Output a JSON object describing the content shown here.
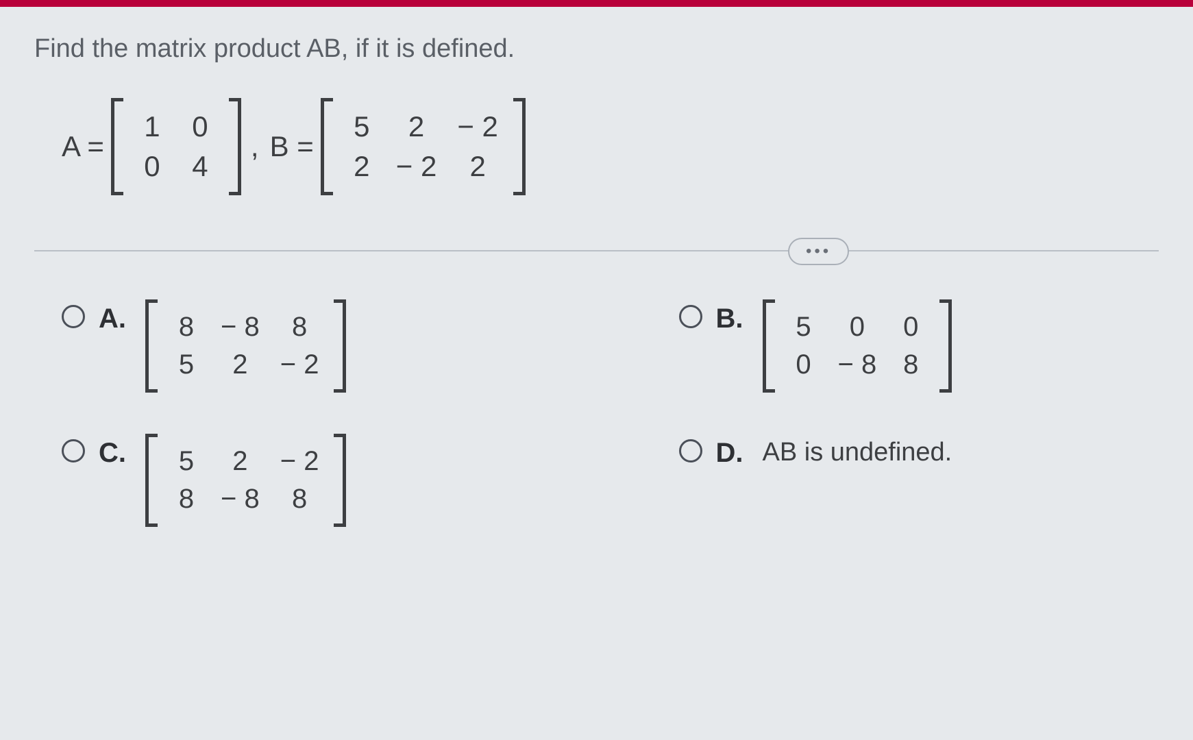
{
  "colors": {
    "top_bar": "#b8003a",
    "background": "#e6e9ec",
    "text_muted": "#5a5f66",
    "text_main": "#3d3f42",
    "divider": "#b9bfc6",
    "radio_border": "#4b5059"
  },
  "typography": {
    "question_fontsize": 38,
    "math_fontsize": 42,
    "option_fontsize": 40
  },
  "question": "Find the matrix product AB, if it is defined.",
  "given": {
    "labelA": "A =",
    "matrixA": {
      "rows": 2,
      "cols": 2,
      "cells": [
        "1",
        "0",
        "0",
        "4"
      ]
    },
    "comma": ",",
    "labelB": "B =",
    "matrixB": {
      "rows": 2,
      "cols": 3,
      "cells": [
        "5",
        "2",
        "− 2",
        "2",
        "− 2",
        "2"
      ]
    }
  },
  "ellipsis": "•••",
  "options": {
    "A": {
      "label": "A.",
      "type": "matrix",
      "matrix": {
        "rows": 2,
        "cols": 3,
        "cells": [
          "8",
          "− 8",
          "8",
          "5",
          "2",
          "− 2"
        ]
      }
    },
    "B": {
      "label": "B.",
      "type": "matrix",
      "matrix": {
        "rows": 2,
        "cols": 3,
        "cells": [
          "5",
          "0",
          "0",
          "0",
          "− 8",
          "8"
        ]
      }
    },
    "C": {
      "label": "C.",
      "type": "matrix",
      "matrix": {
        "rows": 2,
        "cols": 3,
        "cells": [
          "5",
          "2",
          "− 2",
          "8",
          "− 8",
          "8"
        ]
      }
    },
    "D": {
      "label": "D.",
      "type": "text",
      "text": "AB is undefined."
    }
  }
}
